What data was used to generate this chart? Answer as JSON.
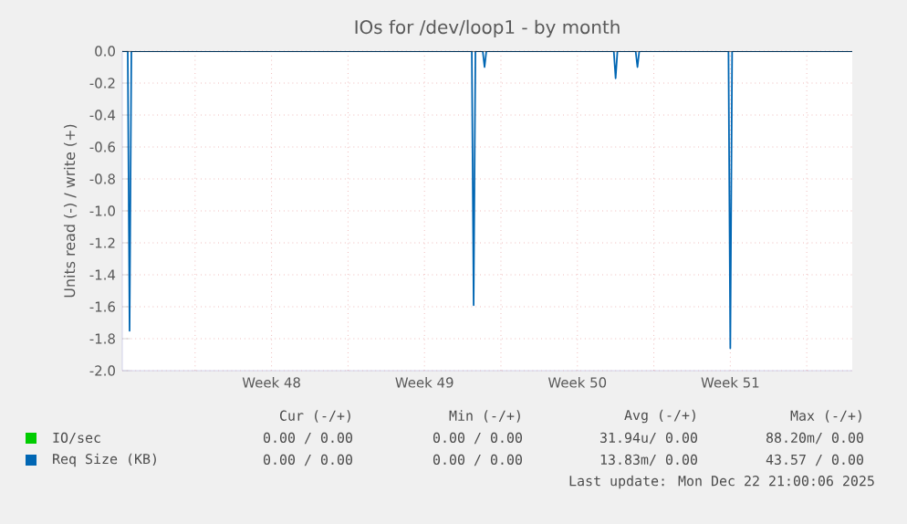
{
  "chart_data": {
    "type": "line",
    "title": "IOs for /dev/loop1 - by month",
    "ylabel": "Units read (-) / write (+)",
    "xlim": [
      "2025-11-20T16:00",
      "2025-12-24T02:00"
    ],
    "ylim": [
      -2,
      0
    ],
    "xticks": [
      {
        "value": "2025-11-24",
        "label": null
      },
      {
        "value": "2025-11-27T12:00",
        "label": "Week 48"
      },
      {
        "value": "2025-12-01",
        "label": null
      },
      {
        "value": "2025-12-04T12:00",
        "label": "Week 49"
      },
      {
        "value": "2025-12-08",
        "label": null
      },
      {
        "value": "2025-12-11T12:00",
        "label": "Week 50"
      },
      {
        "value": "2025-12-15",
        "label": null
      },
      {
        "value": "2025-12-18T12:00",
        "label": "Week 51"
      },
      {
        "value": "2025-12-22",
        "label": null
      }
    ],
    "yticks": [
      {
        "value": 0,
        "label": "0.0"
      },
      {
        "value": -0.2,
        "label": "-0.2"
      },
      {
        "value": -0.4,
        "label": "-0.4"
      },
      {
        "value": -0.6,
        "label": "-0.6"
      },
      {
        "value": -0.8,
        "label": "-0.8"
      },
      {
        "value": -1.0,
        "label": "-1.0"
      },
      {
        "value": -1.2,
        "label": "-1.2"
      },
      {
        "value": -1.4,
        "label": "-1.4"
      },
      {
        "value": -1.6,
        "label": "-1.6"
      },
      {
        "value": -1.8,
        "label": "-1.8"
      },
      {
        "value": -2.0,
        "label": "-2.0"
      }
    ],
    "grid": true,
    "legend": "bottom",
    "marker": "none",
    "line_style": "solid",
    "series": [
      {
        "name": "IO/sec",
        "color": "#00cc00"
      },
      {
        "name": "Req Size (KB)",
        "color": "#0066b3",
        "x": [
          "2025-11-20T16:00",
          "2025-11-20T22:00",
          "2025-11-21T00:00",
          "2025-11-21T02:00",
          "2025-12-06T16:00",
          "2025-12-06T18:00",
          "2025-12-06T20:00",
          "2025-12-07T04:00",
          "2025-12-07T06:00",
          "2025-12-07T08:00",
          "2025-12-13T04:00",
          "2025-12-13T06:00",
          "2025-12-13T08:00",
          "2025-12-14T04:00",
          "2025-12-14T06:00",
          "2025-12-14T08:00",
          "2025-12-18T10:00",
          "2025-12-18T12:00",
          "2025-12-18T14:00",
          "2025-12-24T02:00"
        ],
        "values": [
          0,
          0,
          -1.75,
          0,
          0,
          -1.59,
          0,
          0,
          -0.1,
          0,
          0,
          -0.17,
          0,
          0,
          -0.1,
          0,
          0,
          -1.86,
          0,
          0
        ]
      }
    ],
    "annotations": [
      "Cur (-/+)",
      "Min (-/+)",
      "Avg (-/+)",
      "Max (-/+)",
      "0.00 / 0.00",
      "0.00 / 0.00",
      "31.94u/ 0.00",
      "88.20m/ 0.00",
      "0.00 / 0.00",
      "0.00 / 0.00",
      "13.83m/ 0.00",
      "43.57 / 0.00",
      "Last update: Mon Dec 22 21:00:06 2025"
    ]
  }
}
